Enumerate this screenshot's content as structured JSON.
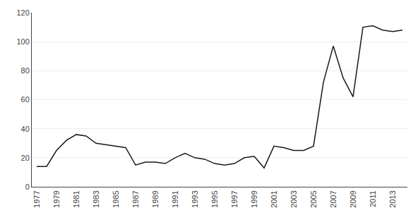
{
  "chart_data": {
    "type": "line",
    "x": [
      1977,
      1978,
      1979,
      1980,
      1981,
      1982,
      1983,
      1984,
      1985,
      1986,
      1987,
      1988,
      1989,
      1990,
      1991,
      1992,
      1993,
      1994,
      1995,
      1996,
      1997,
      1998,
      1999,
      2000,
      2001,
      2002,
      2003,
      2004,
      2005,
      2006,
      2007,
      2008,
      2009,
      2010,
      2011,
      2012,
      2013,
      2014
    ],
    "values": [
      14,
      14,
      25,
      32,
      36,
      35,
      30,
      29,
      28,
      27,
      15,
      17,
      17,
      16,
      20,
      23,
      20,
      19,
      16,
      15,
      16,
      20,
      21,
      13,
      28,
      27,
      25,
      25,
      28,
      72,
      97,
      75,
      62,
      110,
      111,
      108,
      107,
      108
    ],
    "color": "#1a1a1a",
    "xlim": [
      1976.5,
      2014.5
    ],
    "xticks": [
      1977,
      1979,
      1981,
      1983,
      1985,
      1987,
      1989,
      1991,
      1993,
      1995,
      1997,
      1999,
      2001,
      2003,
      2005,
      2007,
      2009,
      2011,
      2013
    ],
    "ylim": [
      0,
      120
    ],
    "yticks": [
      0,
      20,
      40,
      60,
      80,
      100,
      120
    ],
    "grid": true
  }
}
